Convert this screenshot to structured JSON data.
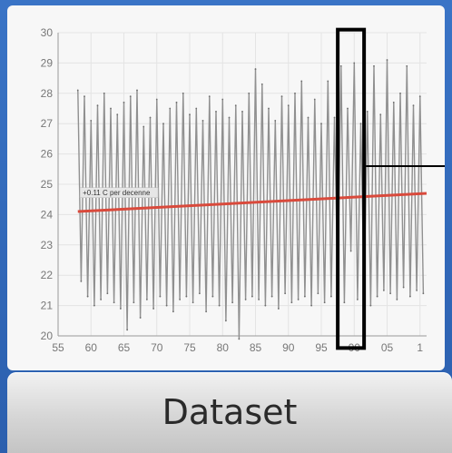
{
  "chart_data": {
    "type": "line",
    "title": "",
    "xlabel": "",
    "ylabel": "",
    "x_tick_labels": [
      "55",
      "60",
      "65",
      "70",
      "75",
      "80",
      "85",
      "90",
      "95",
      "00",
      "05",
      "1"
    ],
    "y_tick_labels": [
      "20",
      "21",
      "22",
      "23",
      "24",
      "25",
      "26",
      "27",
      "28",
      "29",
      "30"
    ],
    "xlim": [
      1955,
      2011
    ],
    "ylim": [
      20,
      30
    ],
    "grid": true,
    "series": [
      {
        "name": "",
        "color": "#909090",
        "x": [
          1958,
          1958.5,
          1959,
          1959.5,
          1960,
          1960.5,
          1961,
          1961.5,
          1962,
          1962.5,
          1963,
          1963.5,
          1964,
          1964.5,
          1965,
          1965.5,
          1966,
          1966.5,
          1967,
          1967.5,
          1968,
          1968.5,
          1969,
          1969.5,
          1970,
          1970.5,
          1971,
          1971.5,
          1972,
          1972.5,
          1973,
          1973.5,
          1974,
          1974.5,
          1975,
          1975.5,
          1976,
          1976.5,
          1977,
          1977.5,
          1978,
          1978.5,
          1979,
          1979.5,
          1980,
          1980.5,
          1981,
          1981.5,
          1982,
          1982.5,
          1983,
          1983.5,
          1984,
          1984.5,
          1985,
          1985.5,
          1986,
          1986.5,
          1987,
          1987.5,
          1988,
          1988.5,
          1989,
          1989.5,
          1990,
          1990.5,
          1991,
          1991.5,
          1992,
          1992.5,
          1993,
          1993.5,
          1994,
          1994.5,
          1995,
          1995.5,
          1996,
          1996.5,
          1997,
          1997.5,
          1998,
          1998.5,
          1999,
          1999.5,
          2000,
          2000.5,
          2001,
          2001.5,
          2002,
          2002.5,
          2003,
          2003.5,
          2004,
          2004.5,
          2005,
          2005.5,
          2006,
          2006.5,
          2007,
          2007.5,
          2008,
          2008.5,
          2009,
          2009.5,
          2010,
          2010.5
        ],
        "y": [
          28.1,
          21.8,
          27.9,
          21.3,
          27.1,
          21.0,
          27.6,
          21.2,
          28.0,
          21.4,
          27.5,
          21.1,
          27.3,
          20.9,
          27.7,
          20.2,
          27.9,
          21.1,
          28.1,
          20.6,
          26.9,
          21.2,
          27.2,
          20.9,
          27.8,
          21.3,
          27.0,
          21.0,
          27.5,
          20.8,
          27.7,
          21.2,
          28.0,
          21.3,
          27.3,
          21.1,
          27.5,
          21.4,
          27.1,
          20.8,
          27.9,
          21.3,
          27.4,
          21.0,
          27.8,
          20.5,
          27.2,
          21.1,
          27.6,
          19.9,
          27.4,
          21.2,
          28.0,
          21.3,
          28.8,
          21.2,
          28.3,
          21.0,
          27.5,
          21.3,
          27.1,
          20.9,
          27.9,
          21.4,
          27.6,
          21.1,
          28.0,
          21.2,
          28.4,
          21.3,
          27.2,
          21.0,
          27.8,
          21.4,
          27.0,
          21.1,
          28.4,
          21.3,
          27.2,
          21.6,
          28.9,
          21.1,
          27.5,
          22.8,
          29.0,
          21.2,
          27.0,
          21.6,
          27.4,
          21.0,
          28.9,
          21.3,
          27.3,
          21.5,
          29.1,
          21.4,
          27.7,
          21.2,
          28.0,
          21.6,
          28.9,
          21.3,
          27.6,
          21.5,
          27.9,
          21.4
        ]
      },
      {
        "name": "",
        "color": "#d94a3c",
        "x": [
          1958,
          2011
        ],
        "y": [
          24.1,
          24.7
        ]
      }
    ],
    "annotations": [
      "+0.11 C per decenne"
    ],
    "highlight": {
      "x_range": [
        1997.5,
        2001.5
      ],
      "y_range": [
        19.6,
        30.1
      ],
      "color": "#000000"
    },
    "callout_line": {
      "color": "#000000"
    }
  },
  "dataset_label": "Dataset"
}
